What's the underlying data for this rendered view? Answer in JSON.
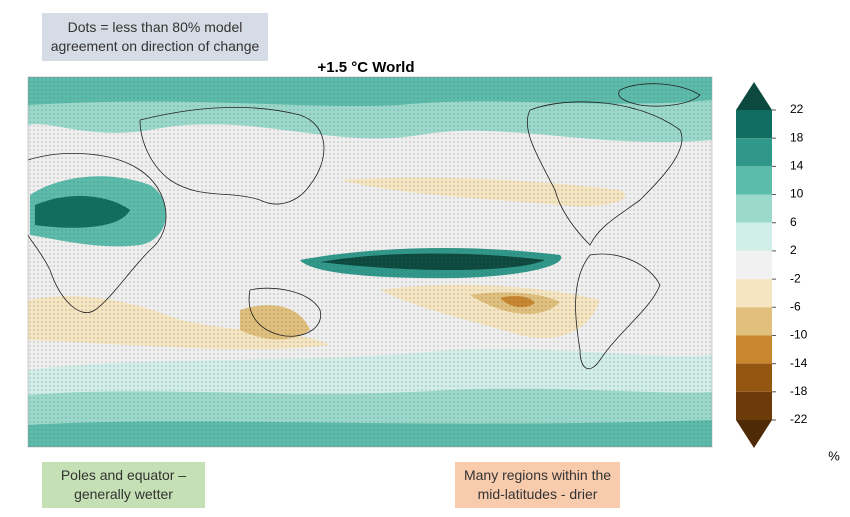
{
  "note_box": {
    "text": "Dots = less than 80% model agreement on direction of change"
  },
  "title": "+1.5 °C World",
  "colorbar": {
    "ticks": [
      22,
      18,
      14,
      10,
      6,
      2,
      -2,
      -6,
      -10,
      -14,
      -18,
      -22
    ],
    "colors": [
      "#0c4a3f",
      "#116d5f",
      "#2f988a",
      "#5cbcab",
      "#9ad9cb",
      "#d2eee8",
      "#f1f1f1",
      "#f5e5c1",
      "#e0c07c",
      "#c8872f",
      "#955611",
      "#6d3b0a",
      "#4f2a06"
    ],
    "unit": "%"
  },
  "annotations": {
    "wet": "Poles and equator – generally wetter",
    "dry": "Many regions within the mid-latitudes - drier"
  }
}
